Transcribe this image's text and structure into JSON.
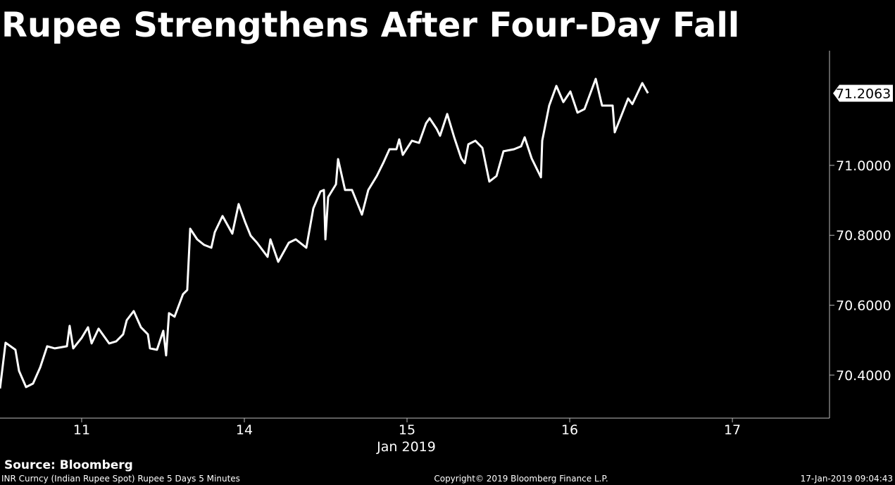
{
  "chart_data": {
    "type": "line",
    "title": "Rupee Strengthens After Four-Day Fall",
    "xlabel": "Jan 2019",
    "source": "Source: Bloomberg",
    "footer": {
      "left": "INR Curncy (Indian Rupee Spot) Rupee 5 Days 5 Minutes",
      "center": "Copyright© 2019 Bloomberg Finance L.P.",
      "right": "17-Jan-2019 09:04:43"
    },
    "xlim": [
      -0.502,
      4.597
    ],
    "xticks": [
      {
        "value": 0,
        "label": "11"
      },
      {
        "value": 1,
        "label": "14"
      },
      {
        "value": 2,
        "label": "15"
      },
      {
        "value": 3,
        "label": "16"
      },
      {
        "value": 4,
        "label": "17"
      }
    ],
    "ylim": [
      70.277,
      71.328
    ],
    "yticks": [
      {
        "value": 70.4,
        "label": "70.4000"
      },
      {
        "value": 70.6,
        "label": "70.6000"
      },
      {
        "value": 70.8,
        "label": "70.8000"
      },
      {
        "value": 71.0,
        "label": "71.0000"
      }
    ],
    "series": [
      {
        "name": "INR",
        "color": "#ffffff",
        "x": [
          -0.502,
          -0.468,
          -0.407,
          -0.385,
          -0.342,
          -0.299,
          -0.255,
          -0.212,
          -0.165,
          -0.091,
          -0.074,
          -0.052,
          0,
          0.039,
          0.061,
          0.104,
          0.169,
          0.212,
          0.255,
          0.277,
          0.32,
          0.364,
          0.407,
          0.42,
          0.463,
          0.502,
          0.519,
          0.537,
          0.571,
          0.623,
          0.649,
          0.667,
          0.71,
          0.753,
          0.797,
          0.818,
          0.866,
          0.926,
          0.965,
          1.004,
          1.039,
          1.078,
          1.143,
          1.16,
          1.208,
          1.273,
          1.316,
          1.381,
          1.424,
          1.468,
          1.489,
          1.498,
          1.515,
          1.563,
          1.576,
          1.619,
          1.662,
          1.723,
          1.762,
          1.814,
          1.857,
          1.892,
          1.935,
          1.952,
          1.974,
          2.03,
          2.074,
          2.117,
          2.139,
          2.182,
          2.203,
          2.247,
          2.29,
          2.333,
          2.355,
          2.377,
          2.42,
          2.463,
          2.506,
          2.55,
          2.593,
          2.658,
          2.701,
          2.723,
          2.766,
          2.823,
          2.831,
          2.874,
          2.918,
          2.961,
          3.004,
          3.048,
          3.091,
          3.16,
          3.199,
          3.264,
          3.277,
          3.316,
          3.359,
          3.385,
          3.446,
          3.481
        ],
        "values": [
          70.3617,
          70.4926,
          70.4725,
          70.4121,
          70.3658,
          70.3758,
          70.4221,
          70.4825,
          70.4765,
          70.4825,
          70.5409,
          70.4765,
          70.5067,
          70.5369,
          70.4906,
          70.5329,
          70.4906,
          70.4966,
          70.5168,
          70.557,
          70.5832,
          70.5369,
          70.5168,
          70.4765,
          70.4725,
          70.5268,
          70.4564,
          70.5772,
          70.5671,
          70.6315,
          70.6436,
          70.8188,
          70.7885,
          70.7725,
          70.7644,
          70.8087,
          70.855,
          70.8047,
          70.8892,
          70.8389,
          70.7986,
          70.7785,
          70.7382,
          70.7885,
          70.7241,
          70.7785,
          70.7885,
          70.7644,
          70.8771,
          70.9254,
          70.9295,
          70.7885,
          70.9093,
          70.9456,
          71.018,
          70.9295,
          70.9295,
          70.859,
          70.9295,
          70.9697,
          71.01,
          71.0462,
          71.0462,
          71.0744,
          71.0301,
          71.0704,
          71.0643,
          71.1207,
          71.1348,
          71.1046,
          71.0845,
          71.1469,
          71.0804,
          71.02,
          71.006,
          71.0603,
          71.0704,
          71.0502,
          70.9536,
          70.9697,
          71.0402,
          71.0462,
          71.0543,
          71.0804,
          71.02,
          70.9657,
          71.0704,
          71.171,
          71.2274,
          71.1811,
          71.2113,
          71.1509,
          71.161,
          71.2475,
          71.171,
          71.171,
          71.0945,
          71.1408,
          71.1912,
          71.1751,
          71.2354,
          71.2063
        ]
      }
    ]
  }
}
